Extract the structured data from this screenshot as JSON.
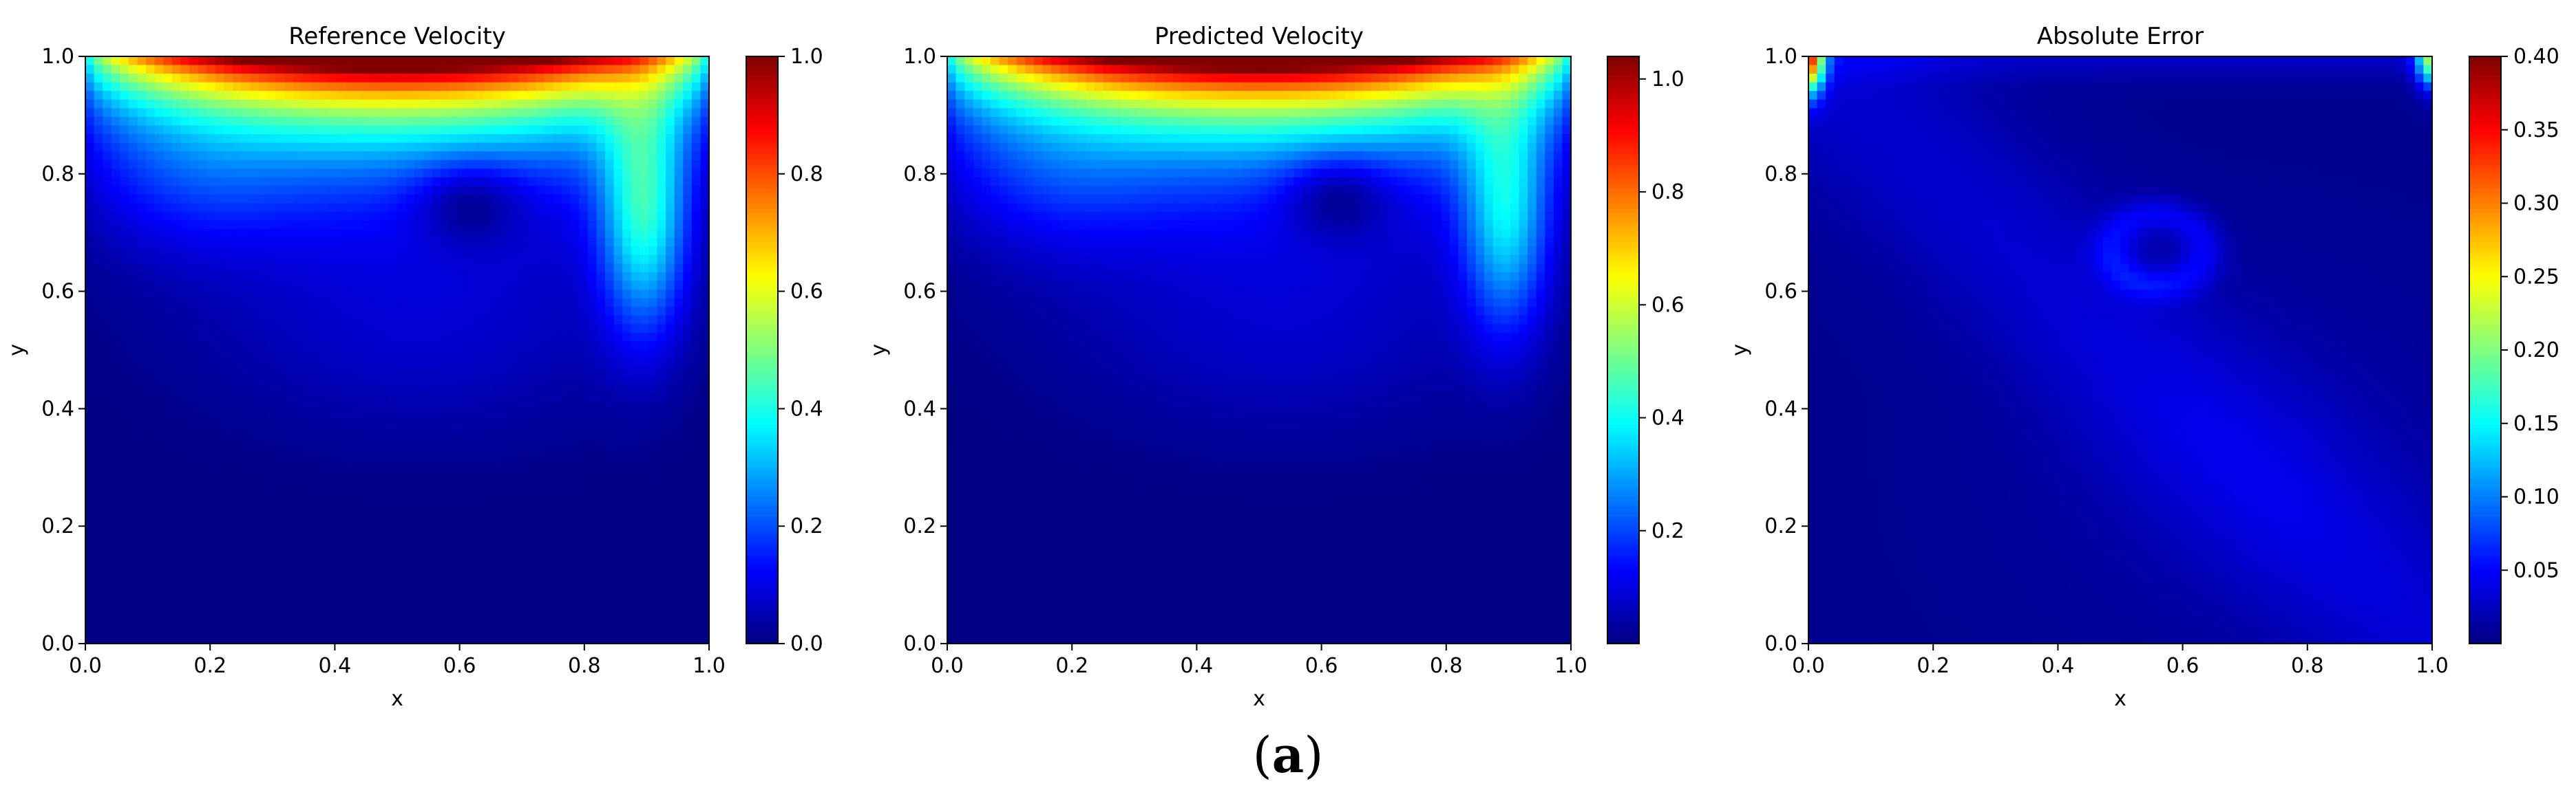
{
  "caption": {
    "open": "(",
    "letter": "a",
    "close": ")"
  },
  "chart_data": [
    {
      "type": "heatmap",
      "title": "Reference Velocity",
      "xlabel": "x",
      "ylabel": "y",
      "xlim": [
        0.0,
        1.0
      ],
      "ylim": [
        0.0,
        1.0
      ],
      "x_ticks": [
        "0.0",
        "0.2",
        "0.4",
        "0.6",
        "0.8",
        "1.0"
      ],
      "y_ticks": [
        "0.0",
        "0.2",
        "0.4",
        "0.6",
        "0.8",
        "1.0"
      ],
      "colormap": "jet",
      "color_range": [
        0.0,
        1.0
      ],
      "colorbar_ticks": [
        "0.0",
        "0.2",
        "0.4",
        "0.6",
        "0.8",
        "1.0"
      ],
      "features": {
        "lid_velocity": 1.0,
        "vortex_center": [
          0.62,
          0.74
        ],
        "right_wall_jet_peak": 0.45
      }
    },
    {
      "type": "heatmap",
      "title": "Predicted Velocity",
      "xlabel": "x",
      "ylabel": "y",
      "xlim": [
        0.0,
        1.0
      ],
      "ylim": [
        0.0,
        1.0
      ],
      "x_ticks": [
        "0.0",
        "0.2",
        "0.4",
        "0.6",
        "0.8",
        "1.0"
      ],
      "y_ticks": [
        "0.0",
        "0.2",
        "0.4",
        "0.6",
        "0.8",
        "1.0"
      ],
      "colormap": "jet",
      "color_range": [
        0.0,
        1.04
      ],
      "colorbar_ticks": [
        "0.2",
        "0.4",
        "0.6",
        "0.8",
        "1.0"
      ],
      "features": {
        "lid_velocity": 1.04,
        "vortex_center": [
          0.63,
          0.75
        ],
        "right_wall_jet_peak": 0.4
      }
    },
    {
      "type": "heatmap",
      "title": "Absolute Error",
      "xlabel": "x",
      "ylabel": "y",
      "xlim": [
        0.0,
        1.0
      ],
      "ylim": [
        0.0,
        1.0
      ],
      "x_ticks": [
        "0.0",
        "0.2",
        "0.4",
        "0.6",
        "0.8",
        "1.0"
      ],
      "y_ticks": [
        "0.0",
        "0.2",
        "0.4",
        "0.6",
        "0.8",
        "1.0"
      ],
      "colormap": "jet",
      "color_range": [
        0.0,
        0.4
      ],
      "colorbar_ticks": [
        "0.05",
        "0.10",
        "0.15",
        "0.20",
        "0.25",
        "0.30",
        "0.35",
        "0.40"
      ],
      "features": {
        "max_error_corners": [
          [
            0.0,
            1.0
          ],
          [
            1.0,
            1.0
          ]
        ],
        "error_ring_center": [
          0.56,
          0.67
        ],
        "diagonal_band_peak": 0.07
      }
    }
  ]
}
